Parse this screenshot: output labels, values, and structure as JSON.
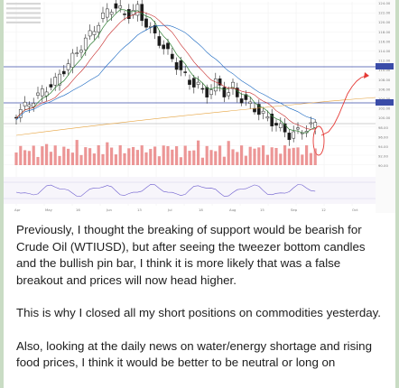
{
  "message": {
    "paragraphs": [
      "Previously, I thought the breaking of support would be bearish for Crude Oil (WTIUSD), but after seeing the tweezer bottom candles and the bullish pin bar, I think it is more likely that was a false breakout and prices will now head higher.",
      "This is why I closed all my short positions on commodities yesterday.",
      "Also, looking at the daily news on water/energy shortage and rising food prices, I think it would be better to be neutral or long on"
    ]
  },
  "chart_data": {
    "type": "candlestick",
    "series_colors": {
      "up": "#ffffff",
      "down": "#1a1a1a",
      "ma_fast": "#2e7d32",
      "ma_mid": "#c62828",
      "ma_slow": "#1565c0",
      "ma_long": "#e6a23c",
      "volume": "#e57373",
      "rsi": "#6a5acd",
      "forecast": "#e53935"
    },
    "price_axis_ticks": [
      "124.00",
      "122.00",
      "120.00",
      "118.00",
      "116.00",
      "114.00",
      "112.00",
      "110.00",
      "108.00",
      "106.00",
      "104.00",
      "102.00",
      "100.00",
      "98.00",
      "96.00",
      "94.00",
      "92.00",
      "90.00"
    ],
    "time_axis_ticks": [
      "Apr",
      "May",
      "16",
      "Jun",
      "13",
      "Jul",
      "18",
      "Aug",
      "15",
      "Sep",
      "12",
      "Oct"
    ]
  }
}
